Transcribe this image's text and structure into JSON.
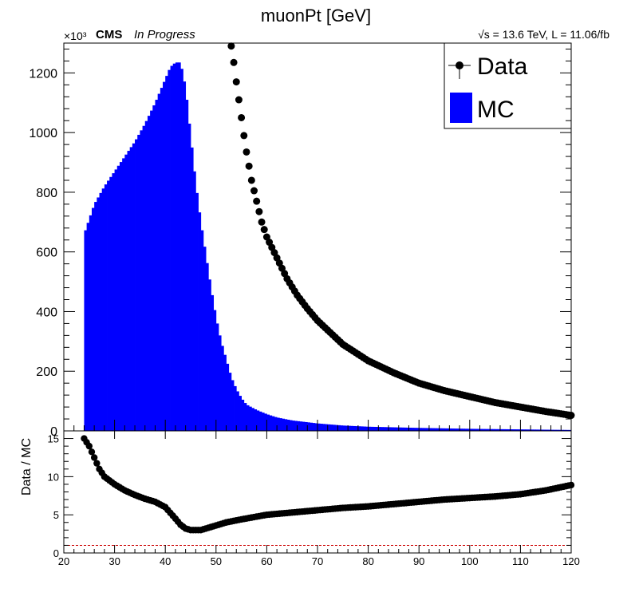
{
  "chart_data": [
    {
      "type": "bar",
      "title": "muonPt [GeV]",
      "multiplier_label": "×10³",
      "cms_label": "CMS",
      "cms_sublabel": "In Progress",
      "lumi_label": "√s = 13.6 TeV, L = 11.06/fb",
      "xlim": [
        20,
        120
      ],
      "ylim": [
        0,
        1300
      ],
      "yticks": [
        0,
        200,
        400,
        600,
        800,
        1000,
        1200
      ],
      "legend": {
        "placement": "top-right",
        "entries": [
          {
            "label": "Data",
            "marker": "point",
            "color": "#000000"
          },
          {
            "label": "MC",
            "marker": "box",
            "color": "#0000ff"
          }
        ]
      },
      "series": [
        {
          "name": "MC",
          "style": "histogram",
          "color": "#0000ff",
          "x": [
            24,
            26,
            28,
            30,
            32,
            34,
            36,
            38,
            40,
            41,
            42,
            43,
            44,
            45,
            46,
            47,
            48,
            49,
            50,
            51,
            52,
            53,
            54,
            55,
            56,
            58,
            60,
            62,
            65,
            70,
            75,
            80,
            90,
            100,
            110,
            120
          ],
          "values": [
            660,
            760,
            820,
            870,
            920,
            970,
            1030,
            1100,
            1180,
            1220,
            1235,
            1235,
            1150,
            990,
            830,
            700,
            590,
            480,
            380,
            300,
            240,
            180,
            140,
            110,
            88,
            70,
            56,
            45,
            35,
            25,
            18,
            14,
            10,
            7,
            5,
            3
          ]
        },
        {
          "name": "Data",
          "style": "points",
          "color": "#000000",
          "x": [
            53,
            53.5,
            54,
            54.5,
            55,
            55.5,
            56,
            57,
            58,
            59,
            60,
            62,
            64,
            66,
            68,
            70,
            75,
            80,
            85,
            90,
            95,
            100,
            105,
            110,
            115,
            120
          ],
          "values": [
            1290,
            1235,
            1170,
            1110,
            1050,
            990,
            935,
            840,
            770,
            700,
            650,
            580,
            510,
            455,
            410,
            370,
            290,
            235,
            195,
            160,
            135,
            115,
            95,
            80,
            65,
            52
          ]
        }
      ]
    },
    {
      "type": "scatter",
      "ylabel": "Data / MC",
      "xlim": [
        20,
        120
      ],
      "ylim": [
        0,
        16
      ],
      "xticks": [
        20,
        30,
        40,
        50,
        60,
        70,
        80,
        90,
        100,
        110,
        120
      ],
      "yticks": [
        0,
        5,
        10,
        15
      ],
      "reference_line": 1,
      "reference_color": "#cc0000",
      "series": [
        {
          "name": "",
          "color": "#000000",
          "x": [
            24,
            25,
            26,
            27,
            28,
            30,
            32,
            34,
            36,
            38,
            40,
            42,
            43,
            44,
            45,
            46,
            47,
            48,
            50,
            52,
            55,
            60,
            65,
            70,
            75,
            80,
            85,
            90,
            95,
            100,
            105,
            110,
            115,
            120
          ],
          "values": [
            15,
            14,
            12.5,
            11,
            10,
            9,
            8.2,
            7.6,
            7.1,
            6.7,
            6,
            4.5,
            3.7,
            3.2,
            3,
            3,
            3,
            3.2,
            3.6,
            4,
            4.4,
            5,
            5.3,
            5.6,
            5.9,
            6.1,
            6.4,
            6.7,
            7,
            7.2,
            7.4,
            7.7,
            8.2,
            8.9
          ]
        }
      ]
    }
  ]
}
